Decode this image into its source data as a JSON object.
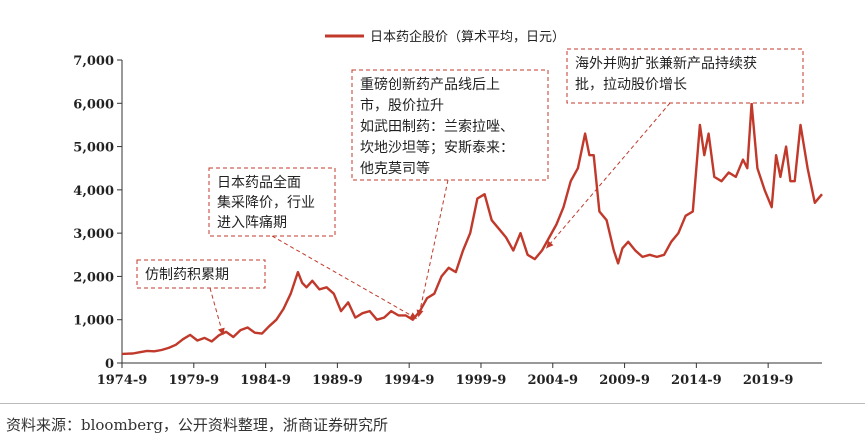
{
  "chart_data": {
    "type": "line",
    "legend": "日本药企股价（算术平均，日元）",
    "legend_position": "top-center",
    "line_color": "#c0392b",
    "ylim": [
      0,
      7000
    ],
    "yticks": [
      "0",
      "1,000",
      "2,000",
      "3,000",
      "4,000",
      "5,000",
      "6,000",
      "7,000"
    ],
    "xticks": [
      "1974-9",
      "1979-9",
      "1984-9",
      "1989-9",
      "1994-9",
      "1999-9",
      "2004-9",
      "2009-9",
      "2014-9",
      "2019-9"
    ],
    "xlim": [
      1974.75,
      2023.5
    ],
    "series": [
      {
        "name": "日本药企股价（算术平均，日元）",
        "x": [
          1974.75,
          1975.5,
          1976.0,
          1976.5,
          1977.0,
          1977.5,
          1978.0,
          1978.5,
          1979.0,
          1979.5,
          1980.0,
          1980.5,
          1981.0,
          1981.5,
          1982.0,
          1982.5,
          1983.0,
          1983.5,
          1984.0,
          1984.5,
          1985.0,
          1985.5,
          1986.0,
          1986.5,
          1987.0,
          1987.3,
          1987.6,
          1988.0,
          1988.5,
          1989.0,
          1989.5,
          1990.0,
          1990.5,
          1991.0,
          1991.5,
          1992.0,
          1992.5,
          1993.0,
          1993.5,
          1994.0,
          1994.5,
          1995.0,
          1995.5,
          1996.0,
          1996.5,
          1997.0,
          1997.5,
          1998.0,
          1998.5,
          1999.0,
          1999.5,
          2000.0,
          2000.5,
          2001.0,
          2001.5,
          2002.0,
          2002.5,
          2003.0,
          2003.5,
          2004.0,
          2004.5,
          2005.0,
          2005.5,
          2006.0,
          2006.5,
          2007.0,
          2007.3,
          2007.6,
          2008.0,
          2008.5,
          2009.0,
          2009.3,
          2009.6,
          2010.0,
          2010.5,
          2011.0,
          2011.5,
          2012.0,
          2012.5,
          2013.0,
          2013.5,
          2014.0,
          2014.5,
          2015.0,
          2015.3,
          2015.6,
          2016.0,
          2016.5,
          2017.0,
          2017.5,
          2018.0,
          2018.3,
          2018.6,
          2019.0,
          2019.5,
          2020.0,
          2020.3,
          2020.6,
          2021.0,
          2021.3,
          2021.6,
          2022.0,
          2022.5,
          2023.0,
          2023.5
        ],
        "values": [
          210,
          220,
          250,
          280,
          270,
          300,
          350,
          420,
          550,
          650,
          520,
          580,
          500,
          640,
          720,
          600,
          760,
          820,
          700,
          680,
          850,
          1000,
          1250,
          1600,
          2100,
          1850,
          1750,
          1900,
          1700,
          1750,
          1600,
          1200,
          1400,
          1050,
          1150,
          1200,
          1000,
          1050,
          1200,
          1100,
          1100,
          1000,
          1200,
          1500,
          1600,
          2000,
          2200,
          2100,
          2600,
          3000,
          3800,
          3900,
          3300,
          3100,
          2900,
          2600,
          3000,
          2500,
          2400,
          2600,
          2900,
          3200,
          3600,
          4200,
          4500,
          5300,
          4800,
          4800,
          3500,
          3300,
          2600,
          2300,
          2650,
          2800,
          2600,
          2450,
          2500,
          2450,
          2500,
          2800,
          3000,
          3400,
          3500,
          5500,
          4800,
          5300,
          4300,
          4200,
          4400,
          4300,
          4700,
          4500,
          6000,
          4500,
          4000,
          3600,
          4800,
          4300,
          5000,
          4200,
          4200,
          5500,
          4500,
          3700,
          3900
        ]
      }
    ],
    "annotations": [
      {
        "lines": [
          "仿制药积累期"
        ],
        "target_x": 1981.8,
        "target_y": 640
      },
      {
        "lines": [
          "日本药品全面",
          "集采降价，行业",
          "进入阵痛期"
        ],
        "target_x": 1995.3,
        "target_y": 1020
      },
      {
        "lines": [
          "重磅创新药产品线后上",
          "市，股价拉升",
          "如武田制药：兰索拉唑、",
          "坎地沙坦等；安斯泰来：",
          "他克莫司等"
        ],
        "target_x": 1995.4,
        "target_y": 1060
      },
      {
        "lines": [
          "海外并购扩张兼新产品持续获",
          "批，拉动股价增长"
        ],
        "target_x": 2004.3,
        "target_y": 2650
      }
    ]
  },
  "footer": {
    "source": "资料来源：bloomberg，公开资料整理，浙商证券研究所"
  }
}
